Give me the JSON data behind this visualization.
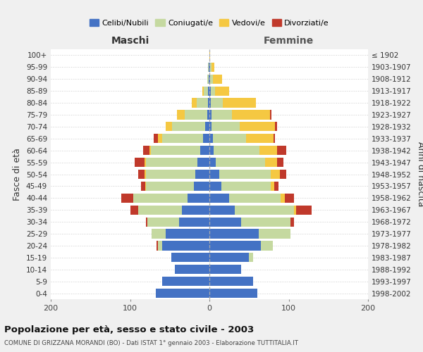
{
  "age_groups": [
    "0-4",
    "5-9",
    "10-14",
    "15-19",
    "20-24",
    "25-29",
    "30-34",
    "35-39",
    "40-44",
    "45-49",
    "50-54",
    "55-59",
    "60-64",
    "65-69",
    "70-74",
    "75-79",
    "80-84",
    "85-89",
    "90-94",
    "95-99",
    "100+"
  ],
  "birth_years": [
    "1998-2002",
    "1993-1997",
    "1988-1992",
    "1983-1987",
    "1978-1982",
    "1973-1977",
    "1968-1972",
    "1963-1967",
    "1958-1962",
    "1953-1957",
    "1948-1952",
    "1943-1947",
    "1938-1942",
    "1933-1937",
    "1928-1932",
    "1923-1927",
    "1918-1922",
    "1913-1917",
    "1908-1912",
    "1903-1907",
    "≤ 1902"
  ],
  "males": {
    "celibe": [
      68,
      60,
      44,
      48,
      60,
      55,
      38,
      35,
      28,
      20,
      18,
      15,
      12,
      8,
      5,
      3,
      2,
      2,
      1,
      1,
      0
    ],
    "coniugato": [
      0,
      0,
      0,
      0,
      5,
      18,
      40,
      55,
      68,
      60,
      62,
      65,
      62,
      52,
      42,
      28,
      14,
      5,
      2,
      1,
      0
    ],
    "vedovo": [
      0,
      0,
      0,
      0,
      0,
      0,
      0,
      0,
      0,
      1,
      2,
      2,
      2,
      5,
      8,
      10,
      6,
      2,
      0,
      0,
      0
    ],
    "divorziato": [
      0,
      0,
      0,
      0,
      2,
      0,
      2,
      10,
      15,
      5,
      8,
      12,
      8,
      5,
      0,
      0,
      0,
      0,
      0,
      0,
      0
    ]
  },
  "females": {
    "nubile": [
      60,
      55,
      40,
      50,
      65,
      62,
      40,
      32,
      25,
      15,
      12,
      8,
      5,
      4,
      3,
      3,
      2,
      2,
      1,
      1,
      0
    ],
    "coniugata": [
      0,
      0,
      0,
      5,
      15,
      40,
      62,
      75,
      65,
      62,
      65,
      62,
      58,
      42,
      35,
      25,
      15,
      5,
      3,
      2,
      0
    ],
    "vedova": [
      0,
      0,
      0,
      0,
      0,
      0,
      0,
      2,
      5,
      5,
      12,
      15,
      22,
      35,
      45,
      48,
      42,
      18,
      12,
      3,
      1
    ],
    "divorziata": [
      0,
      0,
      0,
      0,
      0,
      0,
      5,
      20,
      12,
      5,
      8,
      8,
      12,
      2,
      2,
      2,
      0,
      0,
      0,
      0,
      0
    ]
  },
  "colors": {
    "celibe": "#4472C4",
    "coniugato": "#c5d9a0",
    "vedovo": "#f5c842",
    "divorziato": "#c0392b"
  },
  "xlim": 200,
  "title": "Popolazione per età, sesso e stato civile - 2003",
  "subtitle": "COMUNE DI GRIZZANA MORANDI (BO) - Dati ISTAT 1° gennaio 2003 - Elaborazione TUTTITALIA.IT",
  "ylabel": "Fasce di età",
  "ylabel_right": "Anni di nascita",
  "label_maschi": "Maschi",
  "label_femmine": "Femmine",
  "bg_color": "#f0f0f0",
  "plot_bg": "#ffffff",
  "legend_labels": [
    "Celibi/Nubili",
    "Coniugati/e",
    "Vedovi/e",
    "Divorziati/e"
  ]
}
